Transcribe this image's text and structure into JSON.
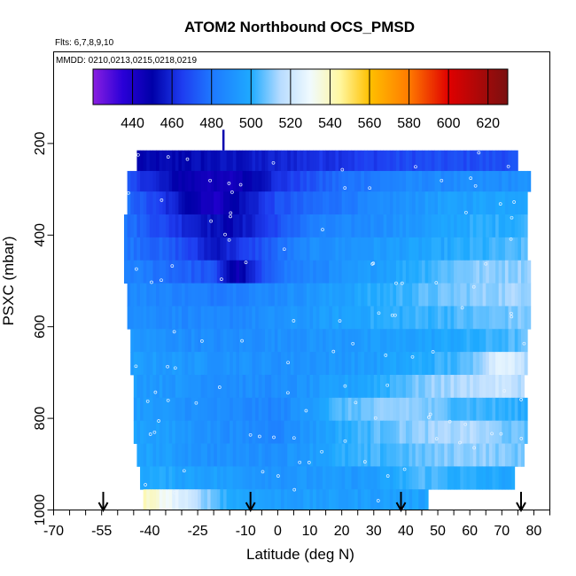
{
  "chart_data": {
    "type": "heatmap",
    "title": "ATOM2 Northbound OCS_PMSD",
    "flights_label": "Flts: 6,7,8,9,10",
    "dates_label": "MMDD: 0210,0213,0215,0218,0219",
    "xlabel": "Latitude (deg N)",
    "ylabel": "PSXC (mbar)",
    "xlim": [
      -70,
      85
    ],
    "ylim": [
      1000,
      0
    ],
    "x_ticks": [
      -70,
      -55,
      -40,
      -25,
      -10,
      0,
      10,
      20,
      30,
      40,
      50,
      60,
      70,
      80
    ],
    "y_ticks": [
      200,
      400,
      600,
      800,
      1000
    ],
    "colorbar": {
      "min": 420,
      "max": 630,
      "tick_values": [
        440,
        460,
        480,
        500,
        520,
        540,
        560,
        580,
        600,
        620
      ],
      "stops": [
        {
          "v": 420,
          "c": "#8a1fe0"
        },
        {
          "v": 435,
          "c": "#2a00d8"
        },
        {
          "v": 450,
          "c": "#0000a8"
        },
        {
          "v": 465,
          "c": "#1e3cf0"
        },
        {
          "v": 480,
          "c": "#1e78ff"
        },
        {
          "v": 500,
          "c": "#1eaaff"
        },
        {
          "v": 515,
          "c": "#b8dcff"
        },
        {
          "v": 530,
          "c": "#f0fafe"
        },
        {
          "v": 545,
          "c": "#fff7a0"
        },
        {
          "v": 560,
          "c": "#ffc000"
        },
        {
          "v": 580,
          "c": "#ff7a00"
        },
        {
          "v": 600,
          "c": "#e00000"
        },
        {
          "v": 630,
          "c": "#7a1010"
        }
      ]
    },
    "arrow_latitudes": [
      -54.5,
      -8.5,
      38.5,
      76
    ],
    "bands": [
      {
        "p_top": 215,
        "p_bot": 260,
        "lat_min": -44,
        "lat_max": 75,
        "kx": [
          -44,
          -30,
          -10,
          10,
          40,
          75
        ],
        "kv": [
          450,
          452,
          455,
          462,
          468,
          470
        ]
      },
      {
        "p_top": 260,
        "p_bot": 305,
        "lat_min": -47,
        "lat_max": 79,
        "kx": [
          -47,
          -30,
          -15,
          0,
          20,
          40,
          60,
          79
        ],
        "kv": [
          470,
          448,
          442,
          462,
          478,
          486,
          488,
          490
        ]
      },
      {
        "p_top": 305,
        "p_bot": 355,
        "lat_min": -47,
        "lat_max": 78,
        "kx": [
          -47,
          -30,
          -20,
          0,
          30,
          50,
          78
        ],
        "kv": [
          478,
          455,
          440,
          470,
          486,
          495,
          500
        ]
      },
      {
        "p_top": 355,
        "p_bot": 405,
        "lat_min": -48,
        "lat_max": 78,
        "kx": [
          -48,
          -30,
          -15,
          10,
          40,
          60,
          78
        ],
        "kv": [
          480,
          462,
          450,
          482,
          492,
          500,
          502
        ]
      },
      {
        "p_top": 405,
        "p_bot": 455,
        "lat_min": -48,
        "lat_max": 78,
        "kx": [
          -48,
          -30,
          -20,
          -10,
          10,
          40,
          78
        ],
        "kv": [
          482,
          470,
          455,
          465,
          488,
          496,
          505
        ]
      },
      {
        "p_top": 455,
        "p_bot": 505,
        "lat_min": -48,
        "lat_max": 79,
        "kx": [
          -48,
          -20,
          -13,
          0,
          30,
          60,
          79
        ],
        "kv": [
          485,
          470,
          445,
          480,
          495,
          510,
          512
        ]
      },
      {
        "p_top": 505,
        "p_bot": 555,
        "lat_min": -47,
        "lat_max": 79,
        "kx": [
          -47,
          -20,
          0,
          30,
          60,
          79
        ],
        "kv": [
          488,
          482,
          488,
          500,
          510,
          514
        ]
      },
      {
        "p_top": 555,
        "p_bot": 605,
        "lat_min": -47,
        "lat_max": 79,
        "kx": [
          -47,
          -20,
          0,
          30,
          60,
          79
        ],
        "kv": [
          490,
          485,
          490,
          500,
          505,
          510
        ]
      },
      {
        "p_top": 605,
        "p_bot": 655,
        "lat_min": -46,
        "lat_max": 78,
        "kx": [
          -46,
          -20,
          0,
          30,
          60,
          78
        ],
        "kv": [
          492,
          488,
          490,
          494,
          500,
          506
        ]
      },
      {
        "p_top": 655,
        "p_bot": 705,
        "lat_min": -46,
        "lat_max": 78,
        "kx": [
          -46,
          -20,
          0,
          30,
          60,
          70,
          78
        ],
        "kv": [
          495,
          492,
          490,
          495,
          505,
          530,
          515
        ]
      },
      {
        "p_top": 705,
        "p_bot": 755,
        "lat_min": -45,
        "lat_max": 77,
        "kx": [
          -45,
          -20,
          0,
          30,
          50,
          70,
          77
        ],
        "kv": [
          495,
          490,
          488,
          500,
          512,
          520,
          515
        ]
      },
      {
        "p_top": 755,
        "p_bot": 805,
        "lat_min": -45,
        "lat_max": 78,
        "kx": [
          -45,
          -20,
          0,
          20,
          40,
          55,
          78
        ],
        "kv": [
          495,
          488,
          485,
          505,
          512,
          505,
          500
        ]
      },
      {
        "p_top": 805,
        "p_bot": 855,
        "lat_min": -45,
        "lat_max": 78,
        "kx": [
          -45,
          -20,
          0,
          20,
          40,
          60,
          78
        ],
        "kv": [
          498,
          490,
          486,
          500,
          510,
          515,
          505
        ]
      },
      {
        "p_top": 855,
        "p_bot": 905,
        "lat_min": -44,
        "lat_max": 77,
        "kx": [
          -44,
          -20,
          0,
          20,
          40,
          60,
          77
        ],
        "kv": [
          498,
          490,
          490,
          500,
          505,
          512,
          508
        ]
      },
      {
        "p_top": 905,
        "p_bot": 955,
        "lat_min": -43,
        "lat_max": 74,
        "kx": [
          -43,
          -20,
          0,
          30,
          45,
          60,
          74
        ],
        "kv": [
          500,
          496,
          492,
          494,
          505,
          500,
          498
        ]
      },
      {
        "p_top": 955,
        "p_bot": 1000,
        "lat_min": -42,
        "lat_max": 47,
        "kx": [
          -42,
          -35,
          -25,
          -15,
          0,
          20,
          47
        ],
        "kv": [
          540,
          532,
          515,
          500,
          495,
          495,
          497
        ]
      }
    ]
  }
}
